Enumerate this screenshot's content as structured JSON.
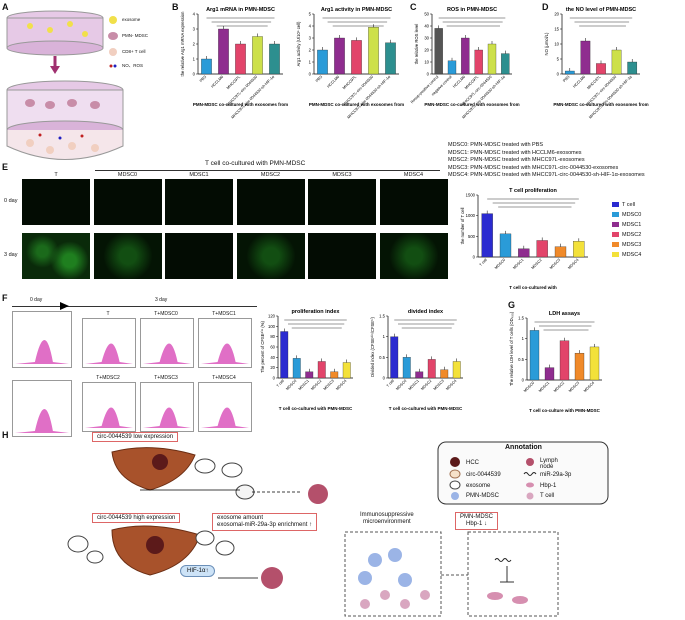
{
  "panelA": {
    "label": "A",
    "legend": [
      "exosome",
      "PMN- MDSC",
      "CD8+ T cell",
      "NO、ROS"
    ],
    "colors": {
      "exosome": "#f1e04a",
      "mdsc": "#c88da8",
      "tcell": "#f1cfc0"
    }
  },
  "panelB": {
    "label": "B"
  },
  "panelC": {
    "label": "C"
  },
  "panelD": {
    "label": "D"
  },
  "panelE": {
    "label": "E",
    "header": "T cell co-cultured with PMN-MDSC",
    "columns": [
      "T",
      "MDSC0",
      "MDSC1",
      "MDSC2",
      "MDSC3",
      "MDSC4"
    ],
    "rows": [
      "0 day",
      "3 day"
    ],
    "definitions": [
      "MDSC0: PMN-MDSC treated with PBS",
      "MDSC1: PMN-MDSC treated with HCCLM6-exosomes",
      "MDSC2: PMN-MDSC treated with MHCC97L-exosomes",
      "MDSC3: PMN-MDSC treated with MHCC97L-circ-0044530-exosomes",
      "MDSC4: PMN-MDSC treated with MHCC97L-circ-0044530-sh-HIF-1α-exosomes"
    ],
    "legend": [
      {
        "name": "T cell",
        "color": "#2b2bd0"
      },
      {
        "name": "MDSC0",
        "color": "#2a9bd8"
      },
      {
        "name": "MDSC1",
        "color": "#8f2d8f"
      },
      {
        "name": "MDSC2",
        "color": "#e2446a"
      },
      {
        "name": "MDSC3",
        "color": "#f08a2a"
      },
      {
        "name": "MDSC4",
        "color": "#f3e13a"
      }
    ]
  },
  "panelF": {
    "label": "F",
    "day0": "0 day",
    "day3": "3 day",
    "hist_labels": [
      "T",
      "T+MDSC0",
      "T+MDSC1",
      "T+MDSC2",
      "T+MDSC3",
      "T+MDSC4"
    ]
  },
  "panelG": {
    "label": "G"
  },
  "panelH": {
    "label": "H",
    "low_title": "circ-0044539 low expression",
    "high_title": "circ-0044539 high expression",
    "mid_box": "exosome amount\nexosomal-miR-29a-3p enrichment ↑",
    "hif": "HIF-1α↑",
    "immuno": "Immunosuppressive\nmicroenvironment",
    "pmn_box": "PMN-MDSC\nHbp-1 ↓",
    "annotation_title": "Annotation",
    "annotation_items": [
      "HCC",
      "Lymph node",
      "circ-0044539",
      "miR-29a-3p",
      "exosome",
      "Hbp-1",
      "PMN-MDSC",
      "T cell"
    ]
  },
  "chart_data": [
    {
      "type": "bar",
      "title": "Arg1 mRNA in  PMN-MDSC",
      "categories": [
        "PBS",
        "HCCLM6",
        "MHCC97L",
        "MHCC97L-circ-0044530",
        "MHCC97L-circ-0044530-sh-HIF-1α"
      ],
      "values": [
        1.0,
        3.0,
        2.0,
        2.5,
        2.0
      ],
      "ylim": [
        0,
        4
      ],
      "yticks": [
        0,
        1,
        2,
        3,
        4
      ],
      "ylabel": "the relative Arg1 mRNA expression",
      "xlabel": "PMN-MDSC co-cultured with exosomes from",
      "colors": [
        "#2a9bd8",
        "#8f2d8f",
        "#e2446a",
        "#cde04a",
        "#2d8f8f"
      ]
    },
    {
      "type": "bar",
      "title": "Arg1 activity in PMN-MDSC",
      "categories": [
        "PBS",
        "HCCLM6",
        "MHCC97L",
        "MHCC97L-circ-0044530",
        "MHCC97L-circ-0044530-sh-HIF-1α"
      ],
      "values": [
        2.0,
        3.0,
        2.8,
        3.9,
        2.6
      ],
      "ylim": [
        0,
        5
      ],
      "yticks": [
        0,
        1,
        2,
        3,
        4,
        5
      ],
      "ylabel": "Arg1 activity (U/10⁶ cell)",
      "xlabel": "PMN-MDSC co-cultured with exosomes from",
      "colors": [
        "#2a9bd8",
        "#8f2d8f",
        "#e2446a",
        "#cde04a",
        "#2d8f8f"
      ]
    },
    {
      "type": "bar",
      "title": "ROS in PMN-MDSC",
      "categories": [
        "Rosup-positive control",
        "negative control",
        "HCCLM6",
        "MHCC97L",
        "MHCC97L-circ-0044530",
        "MHCC97L-circ-0044530-sh-HIF-1α"
      ],
      "values": [
        38,
        11,
        30,
        20,
        25,
        17
      ],
      "ylim": [
        0,
        50
      ],
      "yticks": [
        0,
        10,
        20,
        30,
        40,
        50
      ],
      "ylabel": "the relative ROS level",
      "xlabel": "PMN-MDSC co-cultured with exosomes from",
      "colors": [
        "#555555",
        "#2a9bd8",
        "#8f2d8f",
        "#e2446a",
        "#cde04a",
        "#2d8f8f"
      ]
    },
    {
      "type": "bar",
      "title": "the NO level of PMN-MDSC",
      "categories": [
        "PBS",
        "HCCLM6",
        "MHCC97L",
        "MHCC97L-circ-0044530",
        "MHCC97L-circ-0044530-sh-HIF-1α"
      ],
      "values": [
        1.0,
        11.0,
        3.5,
        8.0,
        4.0
      ],
      "ylim": [
        0,
        20
      ],
      "yticks": [
        0,
        5,
        10,
        15,
        20
      ],
      "ylabel": "NO (μmol/L)",
      "xlabel": "PMN-MDSC co-cultured with exosomes from",
      "colors": [
        "#2a9bd8",
        "#8f2d8f",
        "#e2446a",
        "#cde04a",
        "#2d8f8f"
      ]
    },
    {
      "type": "bar",
      "title": "T cell proliferation",
      "categories": [
        "T cell",
        "MDSC0",
        "MDSC1",
        "MDSC2",
        "MDSC3",
        "MDSC4"
      ],
      "values": [
        1050,
        560,
        200,
        400,
        250,
        380
      ],
      "ylim": [
        0,
        1500
      ],
      "yticks": [
        0,
        500,
        1000,
        1500
      ],
      "ylabel": "the number of T cell",
      "xlabel": "T cell co-cultured with",
      "colors": [
        "#2b2bd0",
        "#2a9bd8",
        "#8f2d8f",
        "#e2446a",
        "#f08a2a",
        "#f3e13a"
      ]
    },
    {
      "type": "bar",
      "title": "proliferation index",
      "categories": [
        "T cell",
        "MDSC0",
        "MDSC1",
        "MDSC2",
        "MDSC3",
        "MDSC4"
      ],
      "values": [
        90,
        38,
        12,
        32,
        12,
        30
      ],
      "ylim": [
        0,
        120
      ],
      "yticks": [
        0,
        20,
        40,
        60,
        80,
        100,
        120
      ],
      "ylabel": "The percent of CFSEᵈⁱᵐ (%)",
      "xlabel": "T cell co-cultured with PMN-MDSC",
      "colors": [
        "#2b2bd0",
        "#2a9bd8",
        "#8f2d8f",
        "#e2446a",
        "#f08a2a",
        "#f3e13a"
      ]
    },
    {
      "type": "bar",
      "title": "divided index",
      "categories": [
        "T cell",
        "MDSC0",
        "MDSC1",
        "MDSC2",
        "MDSC3",
        "MDSC4"
      ],
      "values": [
        1.0,
        0.5,
        0.15,
        0.45,
        0.2,
        0.4
      ],
      "ylim": [
        0,
        1.5
      ],
      "yticks": [
        0,
        0.5,
        1.0,
        1.5
      ],
      "ylabel": "Divided index (CFSEᵈⁱᵐ/CFSEʰⁱ)",
      "xlabel": "T cell co-cultured with PMN-MDSC",
      "colors": [
        "#2b2bd0",
        "#2a9bd8",
        "#8f2d8f",
        "#e2446a",
        "#f08a2a",
        "#f3e13a"
      ]
    },
    {
      "type": "bar",
      "title": "LDH assays",
      "categories": [
        "MDSC0",
        "MDSC1",
        "MDSC2",
        "MDSC3",
        "MDSC4"
      ],
      "values": [
        1.2,
        0.3,
        0.95,
        0.65,
        0.8
      ],
      "ylim": [
        0,
        1.5
      ],
      "yticks": [
        0,
        0.5,
        1.0,
        1.5
      ],
      "ylabel": "The relative LDH level of T cells (OD₄₉₀)",
      "xlabel": "T cell co-culture with PMN-MDSC",
      "colors": [
        "#2a9bd8",
        "#8f2d8f",
        "#e2446a",
        "#f08a2a",
        "#f3e13a"
      ]
    }
  ]
}
